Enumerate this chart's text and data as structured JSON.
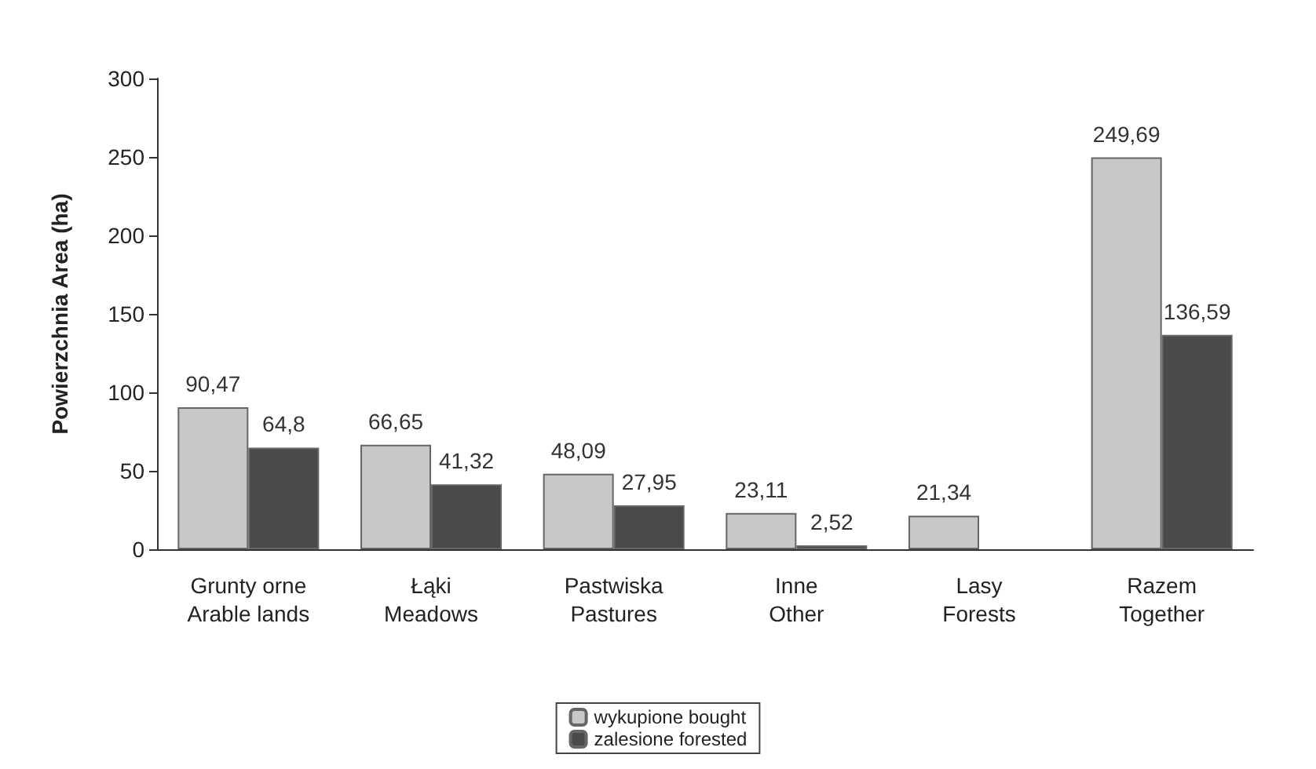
{
  "chart_data": {
    "type": "bar",
    "ylabel": "Powierzchnia Area (ha)",
    "categories": [
      "Grunty orne\nArable lands",
      "Łąki\nMeadows",
      "Pastwiska\nPastures",
      "Inne\nOther",
      "Lasy\nForests",
      "Razem\nTogether"
    ],
    "series": [
      {
        "name": "wykupione bought",
        "color": "#c8c8c8",
        "values": [
          90.47,
          66.65,
          48.09,
          23.11,
          21.34,
          249.69
        ],
        "value_labels": [
          "90,47",
          "66,65",
          "48,09",
          "23,11",
          "21,34",
          "249,69"
        ]
      },
      {
        "name": "zalesione forested",
        "color": "#4a4a4a",
        "values": [
          64.8,
          41.32,
          27.95,
          2.52,
          null,
          136.59
        ],
        "value_labels": [
          "64,8",
          "41,32",
          "27,95",
          "2,52",
          null,
          "136,59"
        ]
      }
    ],
    "ylim": [
      0,
      300
    ],
    "yticks": [
      0,
      50,
      100,
      150,
      200,
      250,
      300
    ],
    "grid": false,
    "legend": "bottom"
  }
}
